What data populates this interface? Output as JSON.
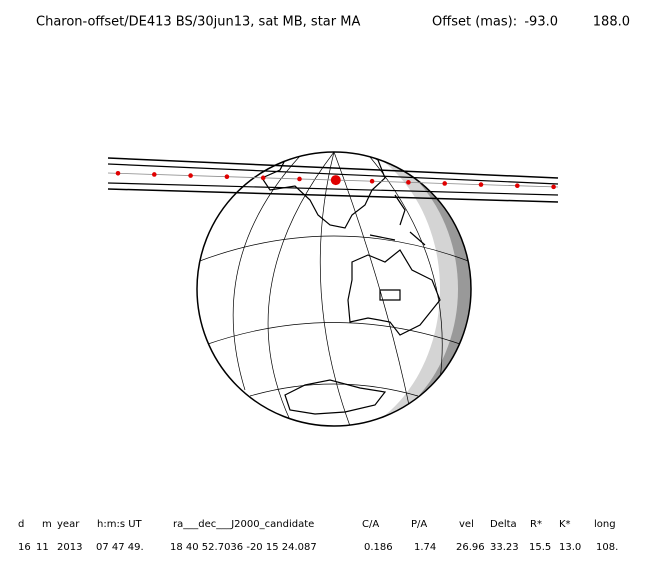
{
  "header": {
    "title": "Charon-offset/DE413 BS/30jun13, sat MB, star MA",
    "offset_label": "Offset (mas):",
    "offset_values": [
      "-93.0",
      "188.0"
    ]
  },
  "table": {
    "columns": [
      "d",
      "m",
      "year",
      "h:m:s UT",
      "ra___dec___J2000_candidate",
      "C/A",
      "P/A",
      "vel",
      "Delta",
      "R*",
      "K*",
      "long"
    ],
    "rows": [
      [
        "16",
        "11",
        "2013",
        "07 47 49.",
        "18 40 52.7036 -20 15 24.087",
        "0.186",
        "1.74",
        "26.96",
        "33.23",
        "15.5",
        "13.0",
        "108."
      ]
    ]
  }
}
